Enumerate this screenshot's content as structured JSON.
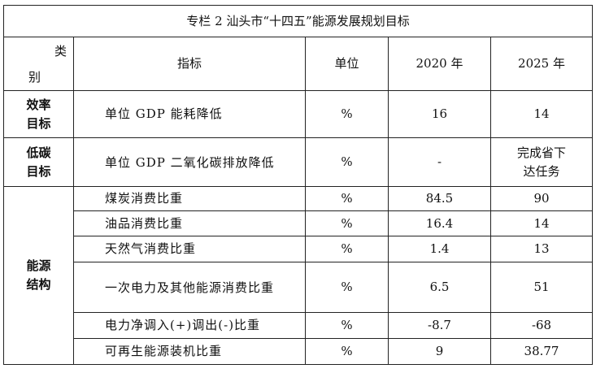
{
  "title": "专栏 2 汕头市“十四五”能源发展规划目标",
  "header": {
    "category_top": "类",
    "category_bottom": "别",
    "indicator": "指标",
    "unit": "单位",
    "year1": "2020 年",
    "year2": "2025 年"
  },
  "rows": [
    {
      "category": "效率\n目标",
      "indicator": "单位 GDP 能耗降低",
      "unit": "%",
      "v2020": "16",
      "v2025": "14"
    },
    {
      "category": "低碳\n目标",
      "indicator": "单位 GDP 二氧化碳排放降低",
      "unit": "%",
      "v2020": "-",
      "v2025": "完成省下\n达任务"
    },
    {
      "category": "能源\n结构",
      "indicator": "煤炭消费比重",
      "unit": "%",
      "v2020": "84.5",
      "v2025": "90"
    },
    {
      "indicator": "油品消费比重",
      "unit": "%",
      "v2020": "16.4",
      "v2025": "14"
    },
    {
      "indicator": "天然气消费比重",
      "unit": "%",
      "v2020": "1.4",
      "v2025": "13"
    },
    {
      "indicator": "一次电力及其他能源消费比重",
      "unit": "%",
      "v2020": "6.5",
      "v2025": "51"
    },
    {
      "indicator": "电力净调入(+)调出(-)比重",
      "unit": "%",
      "v2020": "-8.7",
      "v2025": "-68"
    },
    {
      "indicator": "可再生能源装机比重",
      "unit": "%",
      "v2020": "9",
      "v2025": "38.77"
    }
  ]
}
